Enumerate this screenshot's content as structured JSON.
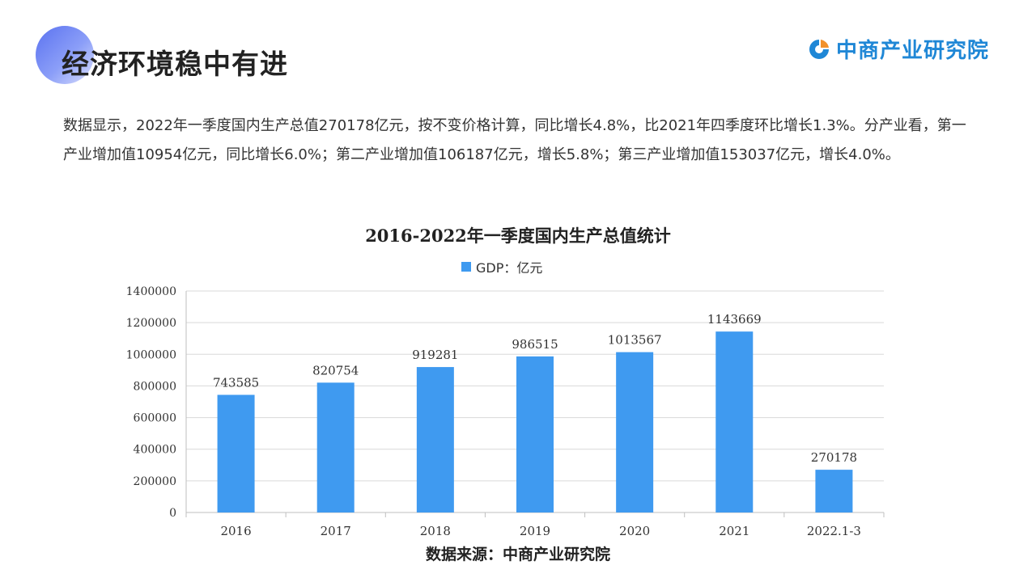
{
  "header": {
    "title": "经济环境稳中有进",
    "logo_text": "中商产业研究院",
    "logo_icon": "zhongshang-logo-icon",
    "accent_color": "#5a72f0",
    "logo_color": "#1f87d6"
  },
  "intro_text": "数据显示，2022年一季度国内生产总值270178亿元，按不变价格计算，同比增长4.8%，比2021年四季度环比增长1.3%。分产业看，第一产业增加值10954亿元，同比增长6.0%；第二产业增加值106187亿元，增长5.8%；第三产业增加值153037亿元，增长4.0%。",
  "chart_data": {
    "type": "bar",
    "title": "2016-2022年一季度国内生产总值统计",
    "categories": [
      "2016",
      "2017",
      "2018",
      "2019",
      "2020",
      "2021",
      "2022.1-3"
    ],
    "series": [
      {
        "name": "GDP：亿元",
        "values": [
          743585,
          820754,
          919281,
          986515,
          1013567,
          1143669,
          270178
        ],
        "color": "#3f9af0"
      }
    ],
    "yticks": [
      "0",
      "200000",
      "400000",
      "600000",
      "800000",
      "1000000",
      "1200000",
      "1400000"
    ],
    "ylim": [
      0,
      1400000
    ],
    "grid": true,
    "legend_position": "top"
  },
  "source_text": "数据来源：中商产业研究院"
}
